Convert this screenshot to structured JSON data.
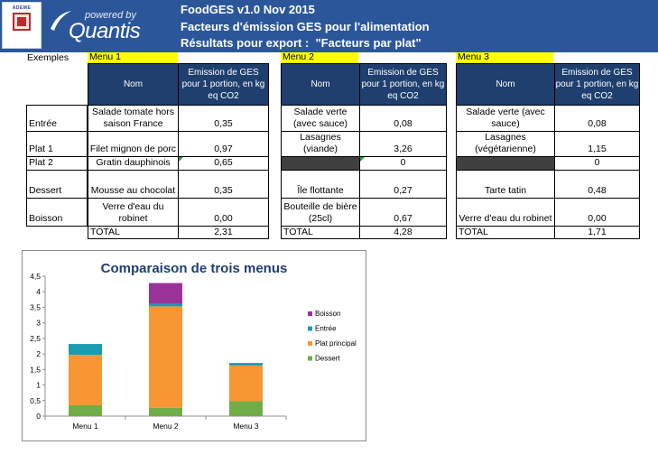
{
  "header": {
    "line1": "FoodGES v1.0 Nov 2015",
    "line2": "Facteurs d'émission GES pour l'alimentation",
    "line3": "Résultats pour export :  \"Facteurs par plat\"",
    "ademe_word": "ADEME",
    "quantis_powered": "powered by",
    "quantis_name": "Quantis"
  },
  "examples_label": "Exemples",
  "column_headers": {
    "nom": "Nom",
    "emission": "Emission de GES pour 1 portion, en kg eq CO2"
  },
  "row_labels": [
    "Entrée",
    "Plat 1",
    "Plat 2",
    "Dessert",
    "Boisson"
  ],
  "total_label": "TOTAL",
  "menus": [
    {
      "title": "Menu 1",
      "items": [
        {
          "name": "Salade tomate hors saison France",
          "value": "0,35"
        },
        {
          "name": "Filet mignon de porc",
          "value": "0,97"
        },
        {
          "name": "Gratin dauphinois",
          "value": "0,65"
        },
        {
          "name": "Mousse au chocolat",
          "value": "0,35"
        },
        {
          "name": "Verre d'eau du robinet",
          "value": "0,00"
        }
      ],
      "total": "2,31"
    },
    {
      "title": "Menu 2",
      "items": [
        {
          "name": "Salade verte (avec sauce)",
          "value": "0,08"
        },
        {
          "name": "Lasagnes (viande)",
          "value": "3,26"
        },
        {
          "name": "",
          "value": "0"
        },
        {
          "name": "Île flottante",
          "value": "0,27"
        },
        {
          "name": "Bouteille de bière (25cl)",
          "value": "0,67"
        }
      ],
      "total": "4,28"
    },
    {
      "title": "Menu 3",
      "items": [
        {
          "name": "Salade verte (avec sauce)",
          "value": "0,08"
        },
        {
          "name": "Lasagnes (végétarienne)",
          "value": "1,15"
        },
        {
          "name": "",
          "value": "0"
        },
        {
          "name": "Tarte tatin",
          "value": "0,48"
        },
        {
          "name": "Verre d'eau du robinet",
          "value": "0,00"
        }
      ],
      "total": "1,71"
    }
  ],
  "chart_data": {
    "type": "bar",
    "stacked": true,
    "title": "Comparaison de trois menus",
    "categories": [
      "Menu 1",
      "Menu 2",
      "Menu 3"
    ],
    "series": [
      {
        "name": "Dessert",
        "color": "#70ad47",
        "values": [
          0.35,
          0.27,
          0.48
        ]
      },
      {
        "name": "Plat principal",
        "color": "#f79632",
        "values": [
          1.62,
          3.26,
          1.15
        ]
      },
      {
        "name": "Entrée",
        "color": "#1b9bb0",
        "values": [
          0.35,
          0.08,
          0.08
        ]
      },
      {
        "name": "Boisson",
        "color": "#993399",
        "values": [
          0.0,
          0.67,
          0.0
        ]
      }
    ],
    "legend_order": [
      "Boisson",
      "Entrée",
      "Plat principal",
      "Dessert"
    ],
    "yticks": [
      "0",
      "0,5",
      "1",
      "1,5",
      "2",
      "2,5",
      "3",
      "3,5",
      "4",
      "4,5"
    ],
    "ylim": [
      0,
      4.5
    ],
    "legend_position": "right",
    "grid": false
  }
}
